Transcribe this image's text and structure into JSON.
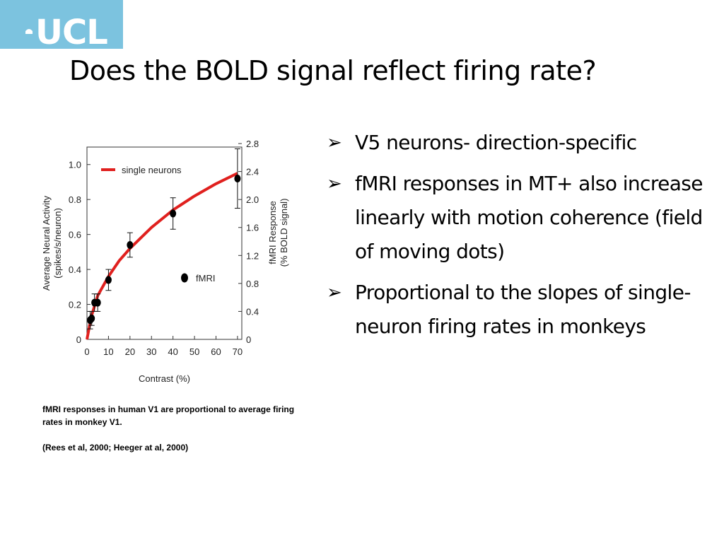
{
  "logo": {
    "text": "UCL"
  },
  "slide": {
    "title": "Does the BOLD signal reflect firing rate?",
    "bullet_glyph": "➢",
    "bullets": [
      "V5 neurons- direction-specific",
      "fMRI responses in MT+ also increase linearly with motion coherence (field of moving dots)",
      "Proportional to the slopes of single-neuron firing rates in monkeys"
    ]
  },
  "caption": {
    "text": "fMRI responses in human V1 are proportional to average firing rates in monkey V1.",
    "citation": "(Rees et al, 2000; Heeger at al, 2000)"
  },
  "chart_data": {
    "type": "line",
    "xlabel": "Contrast (%)",
    "ylabel_left": [
      "Average Neural Activity",
      "(spikes/s/neuron)"
    ],
    "ylabel_right": [
      "fMRI Response",
      "(% BOLD signal)"
    ],
    "x_ticks": [
      0,
      10,
      20,
      30,
      40,
      50,
      60,
      70
    ],
    "y_left_ticks": [
      "0",
      "0.2",
      "0.4",
      "0.6",
      "0.8",
      "1.0"
    ],
    "y_right_ticks": [
      "0",
      "0.4",
      "0.8",
      "1.2",
      "1.6",
      "2.0",
      "2.4",
      "2.8"
    ],
    "xlim": [
      0,
      72
    ],
    "ylim_left": [
      0,
      1.1
    ],
    "ylim_right": [
      0,
      2.75
    ],
    "legend": {
      "line_label": "single neurons",
      "point_label": "fMRI",
      "line_color": "#e0201e"
    },
    "series": [
      {
        "name": "single neurons",
        "x": [
          0,
          2,
          5,
          10,
          15,
          20,
          30,
          40,
          50,
          60,
          70
        ],
        "y": [
          0.0,
          0.13,
          0.25,
          0.36,
          0.45,
          0.52,
          0.64,
          0.74,
          0.82,
          0.89,
          0.95
        ]
      },
      {
        "name": "fMRI",
        "x": [
          1.5,
          2.2,
          3.5,
          5,
          10,
          20,
          40,
          70
        ],
        "y": [
          0.11,
          0.12,
          0.21,
          0.21,
          0.34,
          0.54,
          0.72,
          0.92
        ],
        "err": [
          0.05,
          0.04,
          0.05,
          0.05,
          0.06,
          0.07,
          0.09,
          0.17
        ]
      }
    ]
  }
}
